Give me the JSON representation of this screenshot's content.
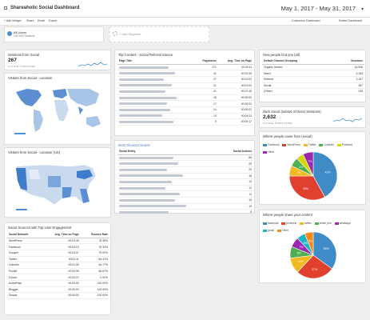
{
  "header": {
    "title": "Shareaholic Social Dashboard",
    "date_range": "May 1, 2017 - May 31, 2017"
  },
  "toolbar": {
    "add_widget": "+ Add Widget",
    "share": "Share",
    "email": "Email",
    "export": "Export",
    "customize": "Customize Dashboard",
    "delete": "Delete Dashboard"
  },
  "segments": {
    "all_users": "All Users",
    "all_users_sub": "100.00% Sessions",
    "add_segment": "+ Add Segment"
  },
  "sessions_social": {
    "title": "Sessions from Social",
    "value": "267",
    "sub": "% of Total: 2.74% (9,736)"
  },
  "visitors_location": {
    "title": "Visitors from Social - Location"
  },
  "visitors_us": {
    "title": "Visitors from Social - Location (US)"
  },
  "social_sources": {
    "title": "Social Sources with Top User Engagement",
    "headers": [
      "Social Network",
      "Avg. Time on Page",
      "Bounce Rate"
    ],
    "rows": [
      [
        "WordPress",
        "00:03:49",
        "78.35%"
      ],
      [
        "Facebook",
        "00:03:19",
        "76.33%"
      ],
      [
        "Google+",
        "00:03:47",
        "75.00%"
      ],
      [
        "Twitter",
        "00:01:11",
        "84.21%"
      ],
      [
        "LinkedIn",
        "00:01:36",
        "64.77%"
      ],
      [
        "Pocket",
        "00:00:35",
        "66.67%"
      ],
      [
        "DZone",
        "00:00:22",
        "0.00%"
      ],
      [
        "ActiveRain",
        "00:00:00",
        "100.00%"
      ],
      [
        "Blogger",
        "00:00:00",
        "100.00%"
      ],
      [
        "Disqus",
        "00:00:00",
        "100.00%"
      ]
    ]
  },
  "top_content": {
    "title": "Top Content - Social Referral Source",
    "headers": [
      "Page Title",
      "Pageviews",
      "Avg. Time on Page"
    ],
    "rows": [
      [
        "",
        "171",
        "00:03:11"
      ],
      [
        "",
        "31",
        "00:02:30"
      ],
      [
        "",
        "27",
        "00:02:51"
      ],
      [
        "",
        "21",
        "00:01:51"
      ],
      [
        "",
        "21",
        "00:07:46"
      ],
      [
        "",
        "18",
        "00:00:00"
      ],
      [
        "",
        "17",
        "00:00:51"
      ],
      [
        "",
        "14",
        "00:00:51"
      ],
      [
        "",
        "13",
        "00:04:31"
      ],
      [
        "",
        "9",
        "00:00:17"
      ]
    ]
  },
  "most_shared": {
    "title": "Most Shared Content",
    "headers": [
      "Social Entity",
      "Social Actions"
    ],
    "rows": [
      [
        "",
        "86"
      ],
      [
        "",
        "29"
      ],
      [
        "",
        "20"
      ],
      [
        "",
        "16"
      ],
      [
        "",
        "13"
      ],
      [
        "",
        "12"
      ],
      [
        "",
        "11"
      ],
      [
        "",
        "10"
      ],
      [
        "",
        "10"
      ],
      [
        "",
        "8"
      ]
    ]
  },
  "how_found": {
    "title": "How people find you (all)",
    "headers": [
      "Default Channel Grouping",
      "Sessions"
    ],
    "rows": [
      [
        "Organic Search",
        "14,906"
      ],
      [
        "Direct",
        "3,183"
      ],
      [
        "Referral",
        "2,197"
      ],
      [
        "Social",
        "267"
      ],
      [
        "(Other)",
        "245"
      ]
    ]
  },
  "dark_social": {
    "title": "Dark Social (subset of Direct Sessions)",
    "value": "2,632",
    "sub": "% of Total: 19.66% (13,394)"
  },
  "pie_came": {
    "title": "Where people came from (social)",
    "legend": [
      "Facebook",
      "WordPress",
      "Twitter",
      "LinkedIn",
      "Pinterest",
      "Other"
    ],
    "colors": [
      "#3f8bc6",
      "#e0412e",
      "#f2b921",
      "#4caf50",
      "#d4d800",
      "#9c27b0"
    ],
    "values": [
      42,
      33,
      7,
      6,
      5,
      7
    ]
  },
  "pie_share": {
    "title": "Where people share your content",
    "legend": [
      "facebook",
      "pinterest",
      "twitter",
      "email_this",
      "whatsapp",
      "gmail",
      "Other"
    ],
    "colors": [
      "#3f8bc6",
      "#e0412e",
      "#f2b921",
      "#4caf50",
      "#9c27b0",
      "#1fb3c6",
      "#f58a19"
    ],
    "values": [
      35,
      27,
      11,
      8,
      7,
      6,
      6
    ]
  }
}
